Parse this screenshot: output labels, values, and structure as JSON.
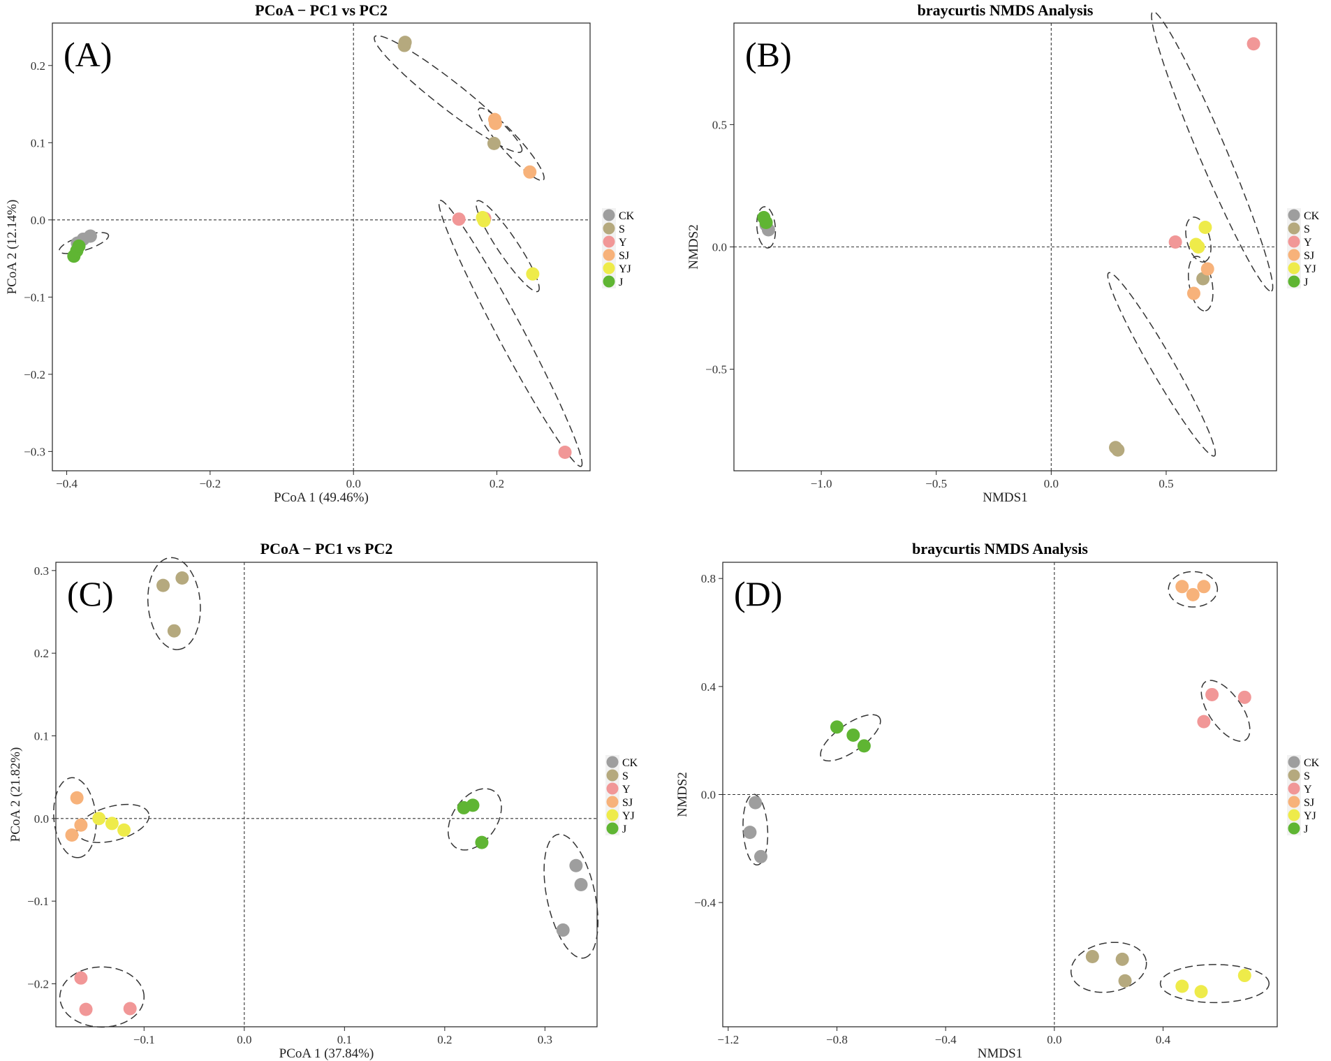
{
  "legend": {
    "groups": [
      "CK",
      "S",
      "Y",
      "SJ",
      "YJ",
      "J"
    ],
    "colors": {
      "CK": "#9e9e9e",
      "S": "#b5a97e",
      "Y": "#f19797",
      "SJ": "#f7b27a",
      "YJ": "#eeeb4a",
      "J": "#5fb533"
    }
  },
  "chart_data": [
    {
      "type": "scatter",
      "panel": "(A)",
      "title": "PCoA − PC1 vs PC2",
      "xlabel": "PCoA 1 (49.46%)",
      "ylabel": "PCoA 2 (12.14%)",
      "xlim": [
        -0.42,
        0.33
      ],
      "ylim": [
        -0.325,
        0.255
      ],
      "xticks": [
        -0.4,
        -0.2,
        0.0,
        0.2
      ],
      "xtick_labels": [
        "−0.4",
        "−0.2",
        "0.0",
        "0.2"
      ],
      "yticks": [
        -0.3,
        -0.2,
        -0.1,
        0.0,
        0.1,
        0.2
      ],
      "ytick_labels": [
        "−0.3",
        "−0.2",
        "−0.1",
        "0.0",
        "0.1",
        "0.2"
      ],
      "series": [
        {
          "name": "CK",
          "points": [
            [
              -0.377,
              -0.025
            ],
            [
              -0.367,
              -0.021
            ],
            [
              -0.385,
              -0.03
            ]
          ]
        },
        {
          "name": "S",
          "points": [
            [
              0.072,
              0.23
            ],
            [
              0.071,
              0.226
            ],
            [
              0.196,
              0.099
            ]
          ]
        },
        {
          "name": "Y",
          "points": [
            [
              0.147,
              0.001
            ],
            [
              0.295,
              -0.301
            ],
            [
              0.183,
              0.002
            ]
          ]
        },
        {
          "name": "SJ",
          "points": [
            [
              0.197,
              0.13
            ],
            [
              0.198,
              0.125
            ],
            [
              0.246,
              0.062
            ]
          ]
        },
        {
          "name": "YJ",
          "points": [
            [
              0.18,
              0.003
            ],
            [
              0.182,
              -0.001
            ],
            [
              0.25,
              -0.07
            ]
          ]
        },
        {
          "name": "J",
          "points": [
            [
              -0.39,
              -0.047
            ],
            [
              -0.386,
              -0.04
            ],
            [
              -0.383,
              -0.034
            ]
          ]
        }
      ],
      "ellipses": [
        {
          "group": "CK",
          "cx": -0.376,
          "cy": -0.03,
          "rx": 0.036,
          "ry": 0.01,
          "angle_deg": 18
        },
        {
          "group": "S",
          "cx": 0.132,
          "cy": 0.163,
          "rx": 0.13,
          "ry": 0.019,
          "angle_deg": -38
        },
        {
          "group": "SJ",
          "cx": 0.22,
          "cy": 0.098,
          "rx": 0.067,
          "ry": 0.013,
          "angle_deg": -48
        },
        {
          "group": "Y",
          "cx": 0.219,
          "cy": -0.147,
          "rx": 0.21,
          "ry": 0.018,
          "angle_deg": -62
        },
        {
          "group": "YJ",
          "cx": 0.215,
          "cy": -0.034,
          "rx": 0.076,
          "ry": 0.014,
          "angle_deg": -56
        }
      ]
    },
    {
      "type": "scatter",
      "panel": "(B)",
      "title": "braycurtis NMDS Analysis",
      "xlabel": "NMDS1",
      "ylabel": "NMDS2",
      "xlim": [
        -1.38,
        0.98
      ],
      "ylim": [
        -0.915,
        0.915
      ],
      "xticks": [
        -1.0,
        -0.5,
        0.0,
        0.5
      ],
      "xtick_labels": [
        "−1.0",
        "−0.5",
        "0.0",
        "0.5"
      ],
      "yticks": [
        -0.5,
        0.0,
        0.5
      ],
      "ytick_labels": [
        "−0.5",
        "0.0",
        "0.5"
      ],
      "series": [
        {
          "name": "CK",
          "points": [
            [
              -1.23,
              0.07
            ],
            [
              -1.24,
              0.09
            ]
          ]
        },
        {
          "name": "S",
          "points": [
            [
              0.28,
              -0.82
            ],
            [
              0.29,
              -0.83
            ],
            [
              0.66,
              -0.13
            ]
          ]
        },
        {
          "name": "Y",
          "points": [
            [
              0.54,
              0.02
            ],
            [
              0.88,
              0.83
            ]
          ]
        },
        {
          "name": "SJ",
          "points": [
            [
              0.68,
              -0.09
            ],
            [
              0.62,
              -0.19
            ]
          ]
        },
        {
          "name": "YJ",
          "points": [
            [
              0.67,
              0.08
            ],
            [
              0.63,
              0.01
            ],
            [
              0.64,
              0.0
            ]
          ]
        },
        {
          "name": "J",
          "points": [
            [
              -1.25,
              0.12
            ],
            [
              -1.24,
              0.1
            ]
          ]
        }
      ],
      "ellipses": [
        {
          "group": "CK",
          "cx": -1.24,
          "cy": 0.08,
          "rx": 0.09,
          "ry": 0.04,
          "angle_deg": -85
        },
        {
          "group": "Y",
          "cx": 0.7,
          "cy": 0.39,
          "rx": 0.66,
          "ry": 0.06,
          "angle_deg": -67
        },
        {
          "group": "YJ",
          "cx": 0.64,
          "cy": 0.03,
          "rx": 0.1,
          "ry": 0.05,
          "angle_deg": -75
        },
        {
          "group": "SJ",
          "cx": 0.65,
          "cy": -0.15,
          "rx": 0.12,
          "ry": 0.05,
          "angle_deg": -80
        },
        {
          "group": "S",
          "cx": 0.48,
          "cy": -0.48,
          "rx": 0.46,
          "ry": 0.05,
          "angle_deg": -60
        }
      ]
    },
    {
      "type": "scatter",
      "panel": "(C)",
      "title": "PCoA − PC1 vs PC2",
      "xlabel": "PCoA 1 (37.84%)",
      "ylabel": "PCoA 2 (21.82%)",
      "xlim": [
        -0.188,
        0.352
      ],
      "ylim": [
        -0.252,
        0.31
      ],
      "xticks": [
        -0.1,
        0.0,
        0.1,
        0.2,
        0.3
      ],
      "xtick_labels": [
        "−0.1",
        "0.0",
        "0.1",
        "0.2",
        "0.3"
      ],
      "yticks": [
        -0.2,
        -0.1,
        0.0,
        0.1,
        0.2,
        0.3
      ],
      "ytick_labels": [
        "−0.2",
        "−0.1",
        "0.0",
        "0.1",
        "0.2",
        "0.3"
      ],
      "series": [
        {
          "name": "CK",
          "points": [
            [
              0.331,
              -0.057
            ],
            [
              0.336,
              -0.08
            ],
            [
              0.318,
              -0.135
            ]
          ]
        },
        {
          "name": "S",
          "points": [
            [
              -0.081,
              0.282
            ],
            [
              -0.062,
              0.291
            ],
            [
              -0.07,
              0.227
            ]
          ]
        },
        {
          "name": "Y",
          "points": [
            [
              -0.163,
              -0.193
            ],
            [
              -0.158,
              -0.231
            ],
            [
              -0.114,
              -0.23
            ]
          ]
        },
        {
          "name": "SJ",
          "points": [
            [
              -0.167,
              0.025
            ],
            [
              -0.163,
              -0.008
            ],
            [
              -0.172,
              -0.02
            ]
          ]
        },
        {
          "name": "YJ",
          "points": [
            [
              -0.145,
              0.0
            ],
            [
              -0.132,
              -0.006
            ],
            [
              -0.12,
              -0.014
            ]
          ]
        },
        {
          "name": "J",
          "points": [
            [
              0.219,
              0.013
            ],
            [
              0.228,
              0.016
            ],
            [
              0.237,
              -0.029
            ]
          ]
        }
      ],
      "ellipses": [
        {
          "group": "S",
          "cx": -0.07,
          "cy": 0.26,
          "rx": 0.046,
          "ry": 0.026,
          "angle_deg": -85
        },
        {
          "group": "SJ",
          "cx": -0.169,
          "cy": 0.001,
          "rx": 0.04,
          "ry": 0.021,
          "angle_deg": -85
        },
        {
          "group": "YJ",
          "cx": -0.131,
          "cy": -0.006,
          "rx": 0.037,
          "ry": 0.017,
          "angle_deg": 15
        },
        {
          "group": "J",
          "cx": 0.23,
          "cy": -0.001,
          "rx": 0.034,
          "ry": 0.022,
          "angle_deg": 55
        },
        {
          "group": "CK",
          "cx": 0.326,
          "cy": -0.094,
          "rx": 0.063,
          "ry": 0.024,
          "angle_deg": -78
        },
        {
          "group": "Y",
          "cx": -0.142,
          "cy": -0.216,
          "rx": 0.042,
          "ry": 0.03,
          "angle_deg": 0
        }
      ]
    },
    {
      "type": "scatter",
      "panel": "(D)",
      "title": "braycurtis NMDS Analysis",
      "xlabel": "NMDS1",
      "ylabel": "NMDS2",
      "xlim": [
        -1.22,
        0.82
      ],
      "ylim": [
        -0.86,
        0.86
      ],
      "xticks": [
        -1.2,
        -0.8,
        -0.4,
        0.0,
        0.4
      ],
      "xtick_labels": [
        "−1.2",
        "−0.8",
        "−0.4",
        "0.0",
        "0.4"
      ],
      "yticks": [
        -0.4,
        0.0,
        0.4,
        0.8
      ],
      "ytick_labels": [
        "−0.4",
        "0.0",
        "0.4",
        "0.8"
      ],
      "series": [
        {
          "name": "CK",
          "points": [
            [
              -1.1,
              -0.03
            ],
            [
              -1.12,
              -0.14
            ],
            [
              -1.08,
              -0.23
            ]
          ]
        },
        {
          "name": "S",
          "points": [
            [
              0.14,
              -0.6
            ],
            [
              0.25,
              -0.61
            ],
            [
              0.26,
              -0.69
            ]
          ]
        },
        {
          "name": "Y",
          "points": [
            [
              0.58,
              0.37
            ],
            [
              0.7,
              0.36
            ],
            [
              0.55,
              0.27
            ]
          ]
        },
        {
          "name": "SJ",
          "points": [
            [
              0.47,
              0.77
            ],
            [
              0.55,
              0.77
            ],
            [
              0.51,
              0.74
            ]
          ]
        },
        {
          "name": "YJ",
          "points": [
            [
              0.47,
              -0.71
            ],
            [
              0.54,
              -0.73
            ],
            [
              0.7,
              -0.67
            ]
          ]
        },
        {
          "name": "J",
          "points": [
            [
              -0.8,
              0.25
            ],
            [
              -0.74,
              0.22
            ],
            [
              -0.7,
              0.18
            ]
          ]
        }
      ],
      "ellipses": [
        {
          "group": "SJ",
          "cx": 0.51,
          "cy": 0.76,
          "rx": 0.09,
          "ry": 0.065,
          "angle_deg": 0
        },
        {
          "group": "Y",
          "cx": 0.63,
          "cy": 0.31,
          "rx": 0.13,
          "ry": 0.06,
          "angle_deg": -55
        },
        {
          "group": "J",
          "cx": -0.75,
          "cy": 0.21,
          "rx": 0.13,
          "ry": 0.05,
          "angle_deg": 35
        },
        {
          "group": "CK",
          "cx": -1.1,
          "cy": -0.13,
          "rx": 0.13,
          "ry": 0.045,
          "angle_deg": -87
        },
        {
          "group": "S",
          "cx": 0.2,
          "cy": -0.64,
          "rx": 0.14,
          "ry": 0.09,
          "angle_deg": 10
        },
        {
          "group": "YJ",
          "cx": 0.59,
          "cy": -0.7,
          "rx": 0.2,
          "ry": 0.07,
          "angle_deg": 0
        }
      ]
    }
  ]
}
